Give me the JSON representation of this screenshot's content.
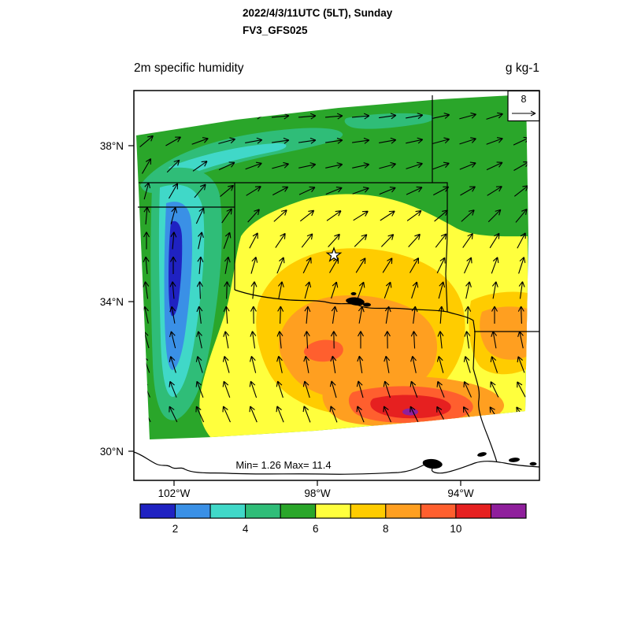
{
  "header": {
    "title_line1": "2022/4/3/11UTC (5LT), Sunday",
    "title_line2": "FV3_GFS025"
  },
  "chart": {
    "variable_label": "2m specific humidity",
    "units_label": "g kg-1",
    "minmax_label": "Min= 1.26 Max= 11.4",
    "ref_vector_label": "8"
  },
  "axes": {
    "lat_labels": [
      "38°N",
      "34°N",
      "30°N"
    ],
    "lon_labels": [
      "102°W",
      "98°W",
      "94°W"
    ]
  },
  "chart_data": {
    "type": "heatmap",
    "title": "2m specific humidity",
    "subtitle_lines": [
      "2022/4/3/11UTC (5LT), Sunday",
      "FV3_GFS025"
    ],
    "units": "g kg-1",
    "stat_min": 1.26,
    "stat_max": 11.4,
    "reference_vector": 8,
    "region_hint": "Texas / Oklahoma region with state borders, Gulf coastline, star marker near 35.3N 98.8W",
    "colorbar": {
      "boundaries": [
        1,
        2,
        3,
        4,
        5,
        6,
        7,
        8,
        9,
        10,
        11,
        12
      ],
      "colors": [
        "#1f22c2",
        "#3a90e6",
        "#40d8c8",
        "#2fbd78",
        "#2aa62a",
        "#ffff3d",
        "#ffcc00",
        "#ff9f20",
        "#ff5f2e",
        "#e62020",
        "#8f1f9c"
      ],
      "tick_values": [
        2,
        4,
        6,
        8,
        10
      ],
      "tick_labels": [
        "2",
        "4",
        "6",
        "8",
        "10"
      ]
    },
    "lat_ticks": [
      "38°N",
      "34°N",
      "30°N"
    ],
    "lon_ticks": [
      "102°W",
      "98°W",
      "94°W"
    ],
    "overlays": [
      "wind vectors",
      "state borders",
      "coastline",
      "lakes",
      "star marker",
      "reference vector box"
    ]
  },
  "wind": {
    "angles": [
      [
        20,
        15,
        10,
        8,
        5,
        5,
        5,
        5,
        5,
        8,
        10,
        12,
        15,
        18,
        20
      ],
      [
        40,
        30,
        20,
        15,
        10,
        8,
        8,
        8,
        8,
        10,
        12,
        15,
        18,
        20,
        25
      ],
      [
        60,
        45,
        35,
        25,
        20,
        15,
        12,
        12,
        12,
        15,
        18,
        20,
        22,
        25,
        30
      ],
      [
        75,
        60,
        50,
        40,
        32,
        28,
        25,
        22,
        20,
        22,
        25,
        28,
        30,
        32,
        38
      ],
      [
        85,
        75,
        65,
        55,
        48,
        42,
        38,
        35,
        32,
        33,
        36,
        40,
        42,
        45,
        50
      ],
      [
        90,
        85,
        78,
        70,
        62,
        56,
        52,
        48,
        45,
        46,
        48,
        52,
        55,
        58,
        62
      ],
      [
        95,
        90,
        85,
        80,
        74,
        68,
        64,
        60,
        58,
        58,
        60,
        64,
        66,
        70,
        72
      ],
      [
        98,
        95,
        92,
        88,
        84,
        79,
        75,
        72,
        70,
        70,
        72,
        75,
        78,
        80,
        82
      ],
      [
        102,
        100,
        97,
        94,
        91,
        88,
        85,
        82,
        80,
        81,
        83,
        86,
        88,
        90,
        92
      ],
      [
        106,
        104,
        102,
        100,
        98,
        96,
        93,
        91,
        90,
        91,
        93,
        96,
        98,
        100,
        102
      ],
      [
        110,
        108,
        107,
        106,
        104,
        102,
        100,
        99,
        99,
        100,
        102,
        105,
        107,
        109,
        111
      ],
      [
        114,
        112,
        111,
        110,
        109,
        108,
        107,
        106,
        106,
        108,
        110,
        112,
        114,
        116,
        118
      ],
      [
        118,
        116,
        115,
        114,
        113,
        112,
        111,
        111,
        112,
        114,
        116,
        118,
        120,
        122,
        124
      ]
    ]
  }
}
